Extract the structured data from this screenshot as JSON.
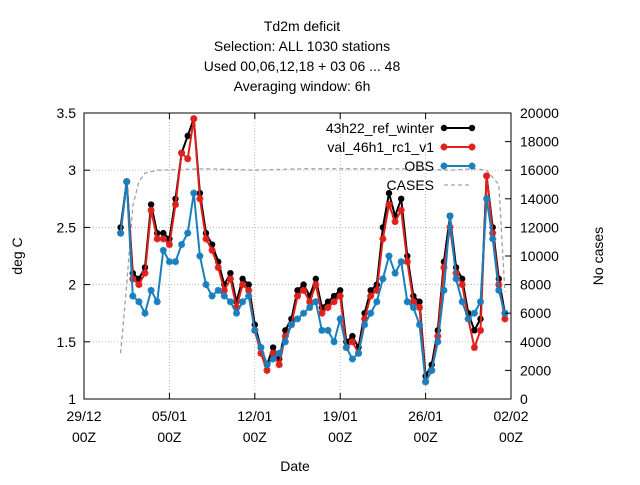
{
  "chart_data": {
    "type": "line",
    "title_lines": [
      "Td2m deficit",
      "Selection: ALL   1030 stations",
      "Used  00,06,12,18  + 03 06 ... 48",
      "Averaging window:  6h"
    ],
    "xlabel": "Date",
    "ylabel_left": "deg C",
    "ylabel_right": "No cases",
    "xlim": [
      "2023-12-29T00",
      "2024-02-02T00"
    ],
    "ylim_left": [
      1,
      3.5
    ],
    "ylim_right": [
      0,
      20000
    ],
    "x_ticks": [
      {
        "date": "2023-12-29T00",
        "line1": "29/12",
        "line2": "00Z"
      },
      {
        "date": "2024-01-05T00",
        "line1": "05/01",
        "line2": "00Z"
      },
      {
        "date": "2024-01-12T00",
        "line1": "12/01",
        "line2": "00Z"
      },
      {
        "date": "2024-01-19T00",
        "line1": "19/01",
        "line2": "00Z"
      },
      {
        "date": "2024-01-26T00",
        "line1": "26/01",
        "line2": "00Z"
      },
      {
        "date": "2024-02-02T00",
        "line1": "02/02",
        "line2": "00Z"
      }
    ],
    "y_ticks_left": [
      "1",
      "1.5",
      "2",
      "2.5",
      "3",
      "3.5"
    ],
    "y_ticks_right": [
      "0",
      "2000",
      "4000",
      "6000",
      "8000",
      "10000",
      "12000",
      "14000",
      "16000",
      "18000",
      "20000"
    ],
    "grid": true,
    "legend_position": "top-right",
    "legend": [
      {
        "label": "43h22_ref_winter",
        "color": "#000000",
        "marker": "dot"
      },
      {
        "label": "val_46h1_rc1_v1",
        "color": "#e0201b",
        "marker": "star"
      },
      {
        "label": "OBS",
        "color": "#1a7fbd",
        "marker": "star"
      },
      {
        "label": "CASES",
        "color": "#a0a0a0",
        "marker": "none"
      }
    ],
    "series": [
      {
        "name": "43h22_ref_winter",
        "axis": "left",
        "color": "#000000",
        "x": [
          "2024-01-01T00",
          "2024-01-01T12",
          "2024-01-02T00",
          "2024-01-02T12",
          "2024-01-03T00",
          "2024-01-03T12",
          "2024-01-04T00",
          "2024-01-04T12",
          "2024-01-05T00",
          "2024-01-05T12",
          "2024-01-06T00",
          "2024-01-06T12",
          "2024-01-07T00",
          "2024-01-07T12",
          "2024-01-08T00",
          "2024-01-08T12",
          "2024-01-09T00",
          "2024-01-09T12",
          "2024-01-10T00",
          "2024-01-10T12",
          "2024-01-11T00",
          "2024-01-11T12",
          "2024-01-12T00",
          "2024-01-12T12",
          "2024-01-13T00",
          "2024-01-13T12",
          "2024-01-14T00",
          "2024-01-14T12",
          "2024-01-15T00",
          "2024-01-15T12",
          "2024-01-16T00",
          "2024-01-16T12",
          "2024-01-17T00",
          "2024-01-17T12",
          "2024-01-18T00",
          "2024-01-18T12",
          "2024-01-19T00",
          "2024-01-19T12",
          "2024-01-20T00",
          "2024-01-20T12",
          "2024-01-21T00",
          "2024-01-21T12",
          "2024-01-22T00",
          "2024-01-22T12",
          "2024-01-23T00",
          "2024-01-23T12",
          "2024-01-24T00",
          "2024-01-24T12",
          "2024-01-25T00",
          "2024-01-25T12",
          "2024-01-26T00",
          "2024-01-26T12",
          "2024-01-27T00",
          "2024-01-27T12",
          "2024-01-28T00",
          "2024-01-28T12",
          "2024-01-29T00",
          "2024-01-29T12",
          "2024-01-30T00",
          "2024-01-30T12",
          "2024-01-31T00",
          "2024-01-31T12",
          "2024-02-01T00",
          "2024-02-01T12"
        ],
        "y": [
          2.5,
          2.9,
          2.1,
          2.05,
          2.15,
          2.7,
          2.45,
          2.45,
          2.4,
          2.75,
          3.15,
          3.3,
          3.45,
          2.8,
          2.45,
          2.35,
          2.2,
          2.0,
          2.1,
          1.85,
          2.05,
          2.0,
          1.65,
          1.45,
          1.3,
          1.45,
          1.35,
          1.6,
          1.7,
          1.95,
          2.0,
          1.9,
          2.05,
          1.8,
          1.85,
          1.9,
          1.95,
          1.5,
          1.55,
          1.45,
          1.75,
          1.95,
          2.0,
          2.5,
          2.8,
          2.6,
          2.75,
          2.25,
          1.9,
          1.85,
          1.2,
          1.3,
          1.6,
          2.2,
          2.6,
          2.15,
          2.05,
          1.75,
          1.6,
          1.7,
          2.95,
          2.5,
          2.05,
          1.75
        ]
      },
      {
        "name": "val_46h1_rc1_v1",
        "axis": "left",
        "color": "#e0201b",
        "x": [
          "2024-01-01T00",
          "2024-01-01T12",
          "2024-01-02T00",
          "2024-01-02T12",
          "2024-01-03T00",
          "2024-01-03T12",
          "2024-01-04T00",
          "2024-01-04T12",
          "2024-01-05T00",
          "2024-01-05T12",
          "2024-01-06T00",
          "2024-01-06T12",
          "2024-01-07T00",
          "2024-01-07T12",
          "2024-01-08T00",
          "2024-01-08T12",
          "2024-01-09T00",
          "2024-01-09T12",
          "2024-01-10T00",
          "2024-01-10T12",
          "2024-01-11T00",
          "2024-01-11T12",
          "2024-01-12T00",
          "2024-01-12T12",
          "2024-01-13T00",
          "2024-01-13T12",
          "2024-01-14T00",
          "2024-01-14T12",
          "2024-01-15T00",
          "2024-01-15T12",
          "2024-01-16T00",
          "2024-01-16T12",
          "2024-01-17T00",
          "2024-01-17T12",
          "2024-01-18T00",
          "2024-01-18T12",
          "2024-01-19T00",
          "2024-01-19T12",
          "2024-01-20T00",
          "2024-01-20T12",
          "2024-01-21T00",
          "2024-01-21T12",
          "2024-01-22T00",
          "2024-01-22T12",
          "2024-01-23T00",
          "2024-01-23T12",
          "2024-01-24T00",
          "2024-01-24T12",
          "2024-01-25T00",
          "2024-01-25T12",
          "2024-01-26T00",
          "2024-01-26T12",
          "2024-01-27T00",
          "2024-01-27T12",
          "2024-01-28T00",
          "2024-01-28T12",
          "2024-01-29T00",
          "2024-01-29T12",
          "2024-01-30T00",
          "2024-01-30T12",
          "2024-01-31T00",
          "2024-01-31T12",
          "2024-02-01T00",
          "2024-02-01T12"
        ],
        "y": [
          2.45,
          2.9,
          2.05,
          2.0,
          2.1,
          2.65,
          2.4,
          2.4,
          2.35,
          2.7,
          3.15,
          3.1,
          3.45,
          2.75,
          2.4,
          2.3,
          2.15,
          1.95,
          2.05,
          1.8,
          2.0,
          1.95,
          1.6,
          1.4,
          1.25,
          1.4,
          1.3,
          1.55,
          1.65,
          1.9,
          1.95,
          1.85,
          2.0,
          1.75,
          1.8,
          1.85,
          1.9,
          1.45,
          1.5,
          1.4,
          1.7,
          1.9,
          1.95,
          2.4,
          2.7,
          2.55,
          2.65,
          2.2,
          1.85,
          1.8,
          1.15,
          1.25,
          1.55,
          2.15,
          2.5,
          2.1,
          2.0,
          1.7,
          1.45,
          1.6,
          2.95,
          2.45,
          2.0,
          1.7
        ]
      },
      {
        "name": "OBS",
        "axis": "left",
        "color": "#1a7fbd",
        "x": [
          "2024-01-01T00",
          "2024-01-01T12",
          "2024-01-02T00",
          "2024-01-02T12",
          "2024-01-03T00",
          "2024-01-03T12",
          "2024-01-04T00",
          "2024-01-04T12",
          "2024-01-05T00",
          "2024-01-05T12",
          "2024-01-06T00",
          "2024-01-06T12",
          "2024-01-07T00",
          "2024-01-07T12",
          "2024-01-08T00",
          "2024-01-08T12",
          "2024-01-09T00",
          "2024-01-09T12",
          "2024-01-10T00",
          "2024-01-10T12",
          "2024-01-11T00",
          "2024-01-11T12",
          "2024-01-12T00",
          "2024-01-12T12",
          "2024-01-13T00",
          "2024-01-13T12",
          "2024-01-14T00",
          "2024-01-14T12",
          "2024-01-15T00",
          "2024-01-15T12",
          "2024-01-16T00",
          "2024-01-16T12",
          "2024-01-17T00",
          "2024-01-17T12",
          "2024-01-18T00",
          "2024-01-18T12",
          "2024-01-19T00",
          "2024-01-19T12",
          "2024-01-20T00",
          "2024-01-20T12",
          "2024-01-21T00",
          "2024-01-21T12",
          "2024-01-22T00",
          "2024-01-22T12",
          "2024-01-23T00",
          "2024-01-23T12",
          "2024-01-24T00",
          "2024-01-24T12",
          "2024-01-25T00",
          "2024-01-25T12",
          "2024-01-26T00",
          "2024-01-26T12",
          "2024-01-27T00",
          "2024-01-27T12",
          "2024-01-28T00",
          "2024-01-28T12",
          "2024-01-29T00",
          "2024-01-29T12",
          "2024-01-30T00",
          "2024-01-30T12",
          "2024-01-31T00",
          "2024-01-31T12",
          "2024-02-01T00",
          "2024-02-01T12"
        ],
        "y": [
          2.45,
          2.9,
          1.9,
          1.85,
          1.75,
          1.95,
          1.85,
          2.3,
          2.2,
          2.2,
          2.35,
          2.45,
          2.8,
          2.25,
          2.0,
          1.9,
          1.95,
          1.9,
          1.85,
          1.75,
          1.85,
          1.9,
          1.6,
          1.45,
          1.3,
          1.35,
          1.4,
          1.5,
          1.65,
          1.7,
          1.75,
          1.8,
          1.85,
          1.6,
          1.6,
          1.5,
          1.7,
          1.45,
          1.35,
          1.4,
          1.65,
          1.75,
          1.85,
          2.05,
          2.25,
          2.1,
          2.2,
          1.85,
          1.8,
          1.65,
          1.15,
          1.25,
          1.5,
          1.95,
          2.6,
          2.05,
          1.85,
          1.7,
          1.75,
          1.85,
          2.75,
          2.4,
          1.95,
          1.75
        ]
      },
      {
        "name": "CASES",
        "axis": "right",
        "color": "#a0a0a0",
        "x": [
          "2024-01-01T00",
          "2024-01-01T12",
          "2024-01-02T00",
          "2024-01-02T12",
          "2024-01-03T00",
          "2024-01-04T00",
          "2024-01-08T00",
          "2024-01-12T00",
          "2024-01-16T00",
          "2024-01-20T00",
          "2024-01-24T00",
          "2024-01-28T00",
          "2024-01-30T00",
          "2024-01-31T00",
          "2024-02-01T00",
          "2024-02-01T12"
        ],
        "y": [
          3200,
          8000,
          13500,
          15200,
          15800,
          16000,
          16100,
          16000,
          16100,
          16100,
          16100,
          16000,
          16100,
          16000,
          15000,
          7500
        ]
      }
    ]
  }
}
